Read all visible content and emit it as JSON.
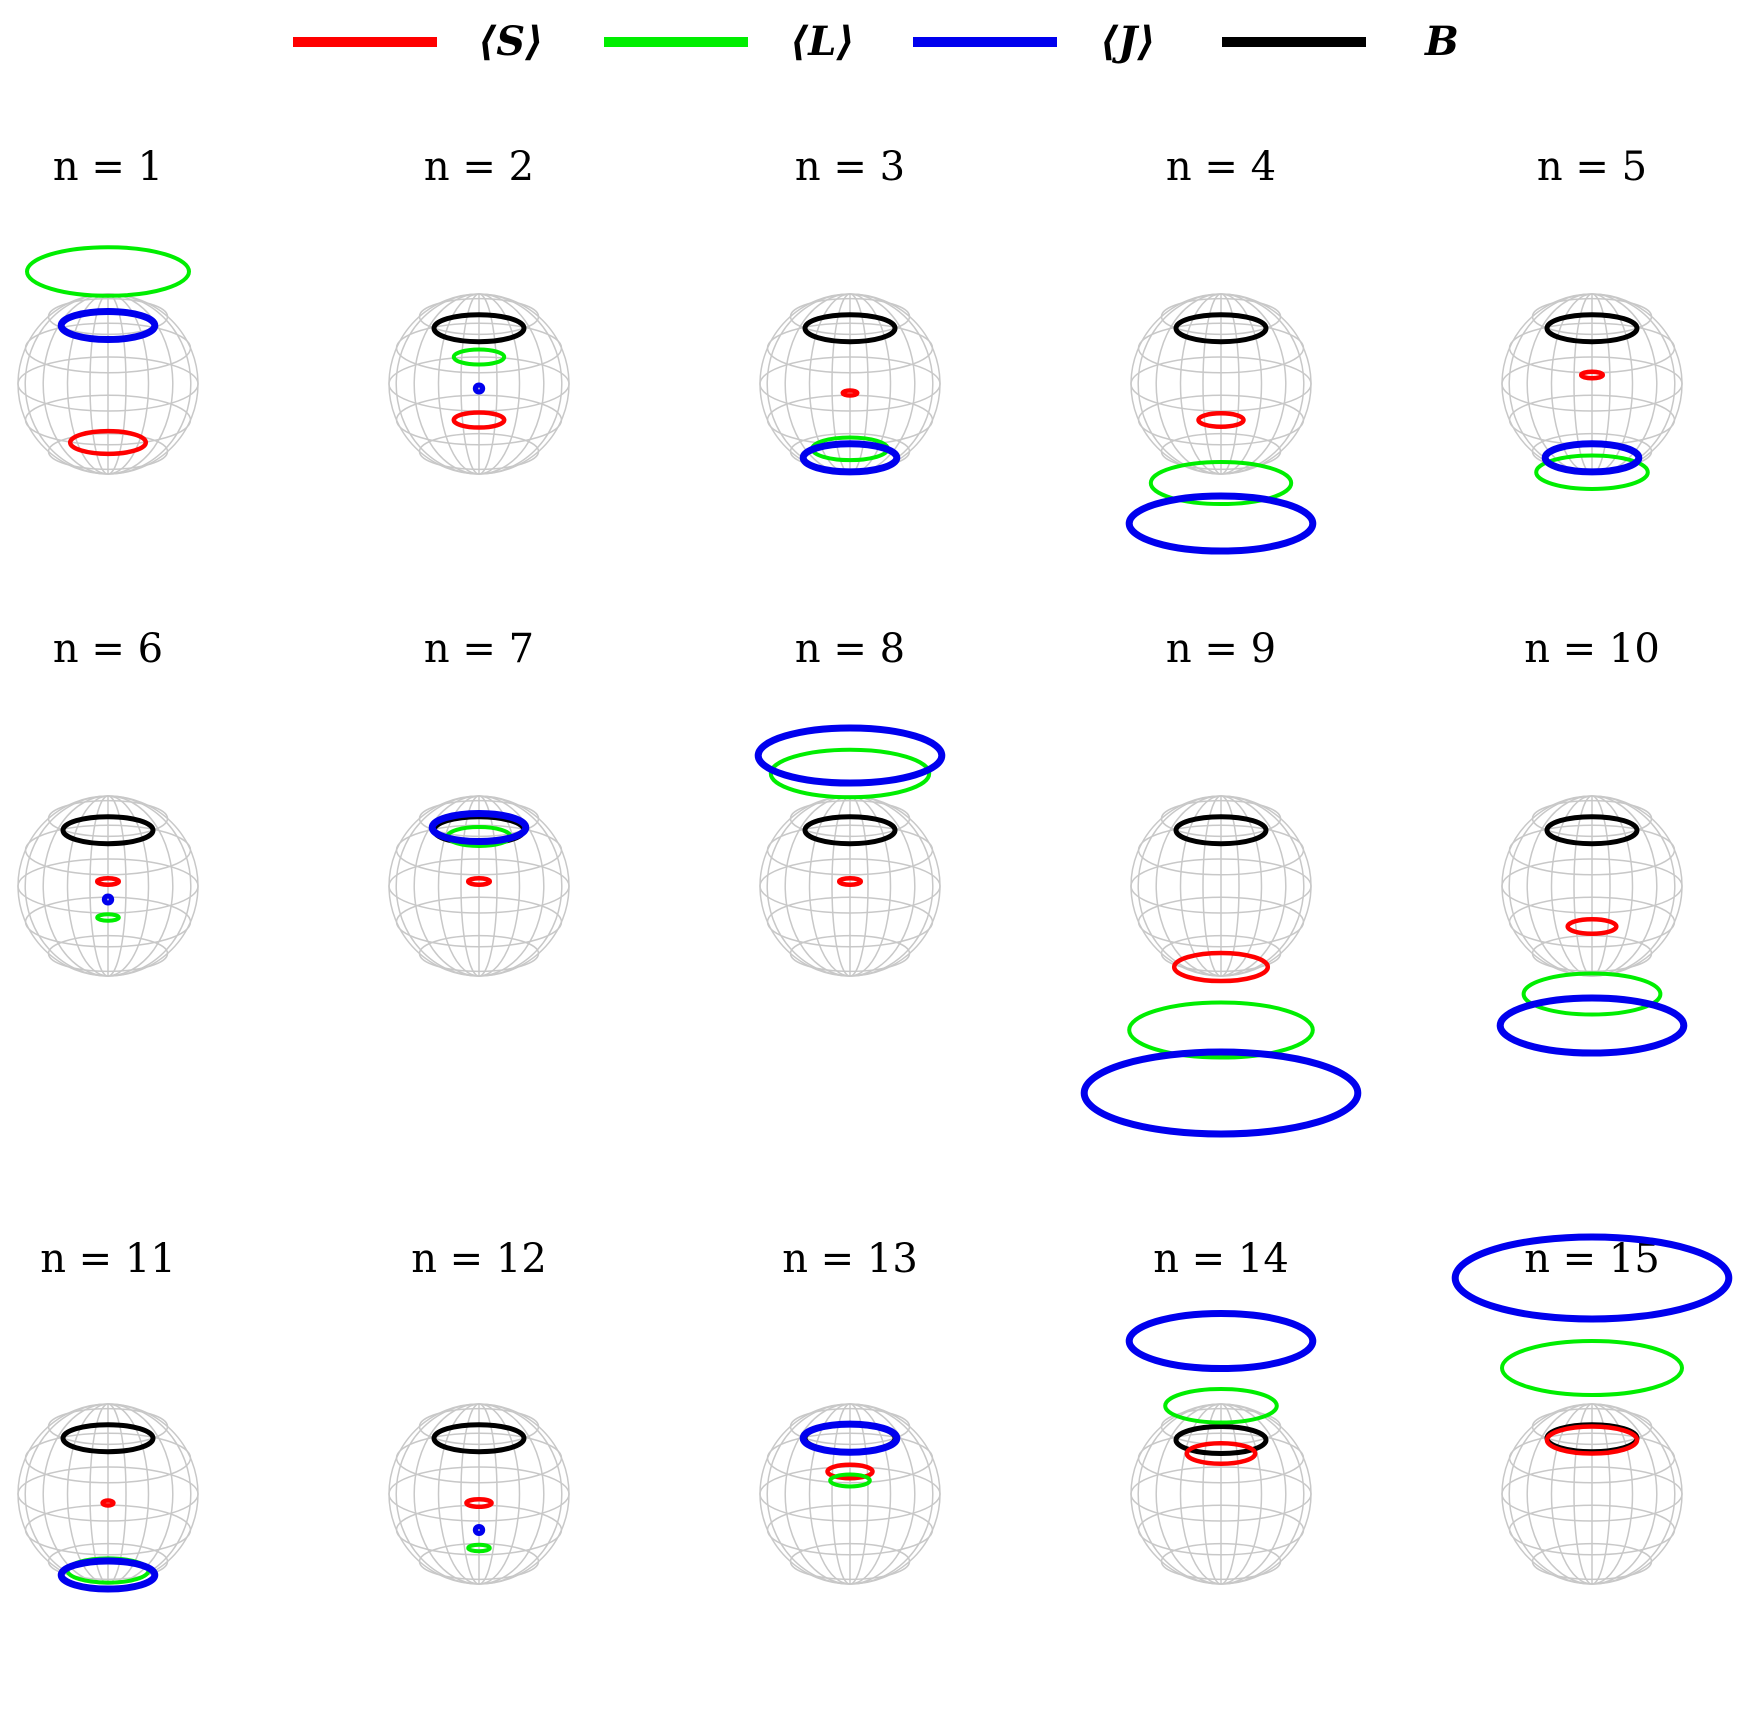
{
  "legend": [
    {
      "label": "⟨S⟩",
      "color": "#ff0000"
    },
    {
      "label": "⟨L⟩",
      "color": "#00ee00"
    },
    {
      "label": "⟨J⟩",
      "color": "#0000ee"
    },
    {
      "label": "B",
      "color": "#000000"
    }
  ],
  "colors": {
    "grid": "#c8c8c8",
    "S": "#ff0000",
    "L": "#00ee00",
    "J": "#0000ee",
    "B": "#000000"
  },
  "panels": [
    {
      "title": "n = 1",
      "B": null,
      "S": {
        "h": -0.65,
        "r": 0.42
      },
      "L": {
        "h": 1.25,
        "r": 0.9
      },
      "J": {
        "h": 0.65,
        "r": 0.52
      }
    },
    {
      "title": "n = 2",
      "B": {
        "h": 0.62,
        "r": 0.5
      },
      "S": {
        "h": -0.4,
        "r": 0.28
      },
      "L": {
        "h": 0.3,
        "r": 0.28
      },
      "J": {
        "h": -0.05,
        "r": 0.03
      }
    },
    {
      "title": "n = 3",
      "B": {
        "h": 0.62,
        "r": 0.5
      },
      "S": {
        "h": -0.1,
        "r": 0.08
      },
      "L": {
        "h": -0.72,
        "r": 0.42
      },
      "J": {
        "h": -0.82,
        "r": 0.52
      }
    },
    {
      "title": "n = 4",
      "B": {
        "h": 0.62,
        "r": 0.5
      },
      "S": {
        "h": -0.4,
        "r": 0.25
      },
      "L": {
        "h": -1.1,
        "r": 0.78
      },
      "J": {
        "h": -1.55,
        "r": 1.02
      }
    },
    {
      "title": "n = 5",
      "B": {
        "h": 0.62,
        "r": 0.5
      },
      "S": {
        "h": 0.1,
        "r": 0.12
      },
      "L": {
        "h": -0.98,
        "r": 0.62
      },
      "J": {
        "h": -0.82,
        "r": 0.52
      }
    },
    {
      "title": "n = 6",
      "B": {
        "h": 0.62,
        "r": 0.5
      },
      "S": {
        "h": 0.05,
        "r": 0.12
      },
      "L": {
        "h": -0.35,
        "r": 0.12
      },
      "J": {
        "h": -0.15,
        "r": 0.03
      }
    },
    {
      "title": "n = 7",
      "B": {
        "h": 0.62,
        "r": 0.5
      },
      "S": {
        "h": 0.05,
        "r": 0.12
      },
      "L": {
        "h": 0.55,
        "r": 0.35
      },
      "J": {
        "h": 0.65,
        "r": 0.52
      }
    },
    {
      "title": "n = 8",
      "B": {
        "h": 0.62,
        "r": 0.5
      },
      "S": {
        "h": 0.05,
        "r": 0.12
      },
      "L": {
        "h": 1.25,
        "r": 0.88
      },
      "J": {
        "h": 1.45,
        "r": 1.02
      }
    },
    {
      "title": "n = 9",
      "B": {
        "h": 0.62,
        "r": 0.5
      },
      "S": {
        "h": -0.9,
        "r": 0.52
      },
      "L": {
        "h": -1.6,
        "r": 1.02
      },
      "J": {
        "h": -2.3,
        "r": 1.52
      }
    },
    {
      "title": "n = 10",
      "B": {
        "h": 0.62,
        "r": 0.5
      },
      "S": {
        "h": -0.45,
        "r": 0.27
      },
      "L": {
        "h": -1.2,
        "r": 0.76
      },
      "J": {
        "h": -1.55,
        "r": 1.02
      }
    },
    {
      "title": "n = 11",
      "B": {
        "h": 0.62,
        "r": 0.5
      },
      "S": {
        "h": -0.1,
        "r": 0.06
      },
      "L": {
        "h": -0.85,
        "r": 0.45
      },
      "J": {
        "h": -0.9,
        "r": 0.52
      }
    },
    {
      "title": "n = 12",
      "B": {
        "h": 0.62,
        "r": 0.5
      },
      "S": {
        "h": -0.1,
        "r": 0.14
      },
      "L": {
        "h": -0.6,
        "r": 0.12
      },
      "J": {
        "h": -0.4,
        "r": 0.03
      }
    },
    {
      "title": "n = 13",
      "B": {
        "h": 0.62,
        "r": 0.5
      },
      "S": {
        "h": 0.25,
        "r": 0.25
      },
      "L": {
        "h": 0.15,
        "r": 0.22
      },
      "J": {
        "h": 0.62,
        "r": 0.52
      }
    },
    {
      "title": "n = 14",
      "B": {
        "h": 0.6,
        "r": 0.5
      },
      "S": {
        "h": 0.45,
        "r": 0.38
      },
      "L": {
        "h": 0.98,
        "r": 0.62
      },
      "J": {
        "h": 1.7,
        "r": 1.02
      }
    },
    {
      "title": "n = 15",
      "B": {
        "h": 0.62,
        "r": 0.5
      },
      "S": {
        "h": 0.6,
        "r": 0.5
      },
      "L": {
        "h": 1.4,
        "r": 1.0
      },
      "J": {
        "h": 2.4,
        "r": 1.52
      }
    }
  ]
}
